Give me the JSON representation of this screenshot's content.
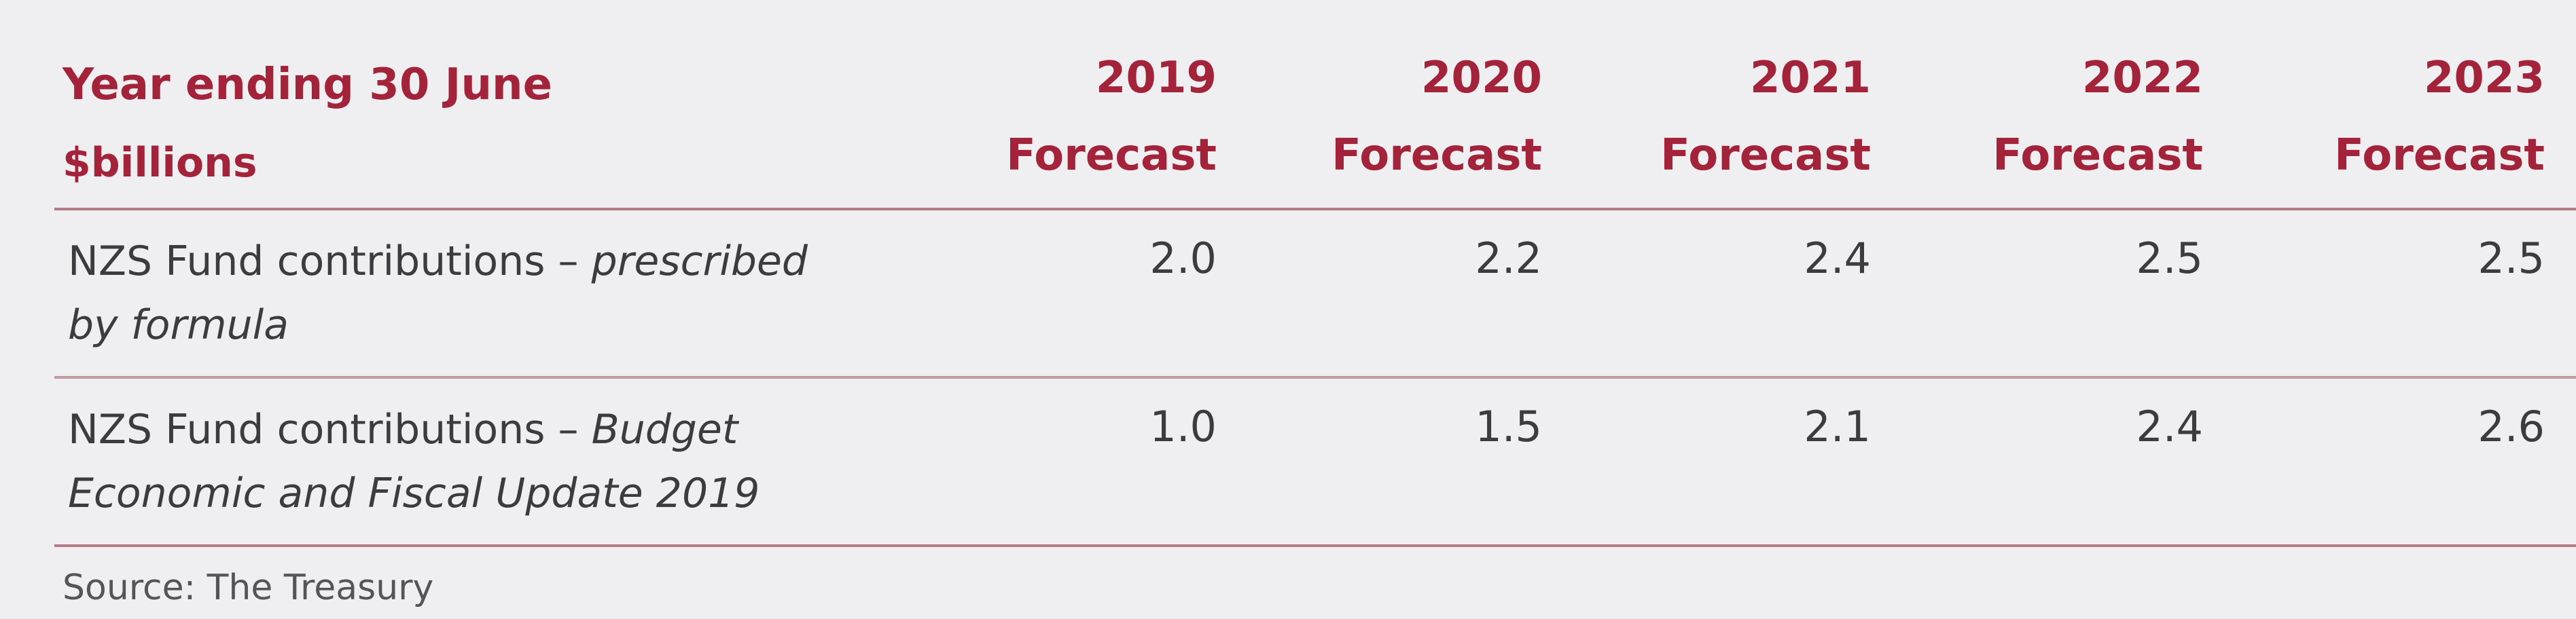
{
  "header": {
    "title": "Year ending 30 June",
    "unit": "$billions"
  },
  "columns": [
    {
      "year": "2019",
      "label": "Forecast"
    },
    {
      "year": "2020",
      "label": "Forecast"
    },
    {
      "year": "2021",
      "label": "Forecast"
    },
    {
      "year": "2022",
      "label": "Forecast"
    },
    {
      "year": "2023",
      "label": "Forecast"
    }
  ],
  "rows": [
    {
      "label": "NZS Fund contributions –",
      "label_italic": [
        "prescribed",
        "by formula"
      ],
      "values": [
        "2.0",
        "2.2",
        "2.4",
        "2.5",
        "2.5"
      ]
    },
    {
      "label": "NZS Fund contributions –",
      "label_italic": [
        "Budget",
        "Economic and Fiscal Update 2019"
      ],
      "values": [
        "1.0",
        "1.5",
        "2.1",
        "2.4",
        "2.6"
      ]
    }
  ],
  "source": "Source: The Treasury"
}
